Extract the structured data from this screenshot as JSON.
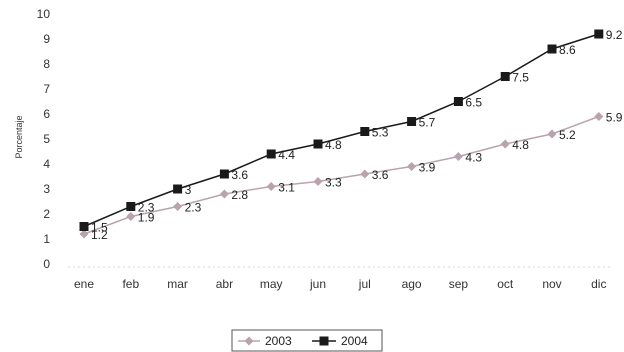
{
  "chart_data": {
    "type": "line",
    "ylabel": "Porcentaje",
    "ylim": [
      0,
      10
    ],
    "yticks": [
      "0",
      "1",
      "2",
      "3",
      "4",
      "5",
      "6",
      "7",
      "8",
      "9",
      "10"
    ],
    "categories": [
      "ene",
      "feb",
      "mar",
      "abr",
      "may",
      "jun",
      "jul",
      "ago",
      "sep",
      "oct",
      "nov",
      "dic"
    ],
    "grid": false,
    "legend_position": "bottom",
    "series": [
      {
        "name": "2003",
        "values": [
          1.2,
          1.9,
          2.3,
          2.8,
          3.1,
          3.3,
          3.6,
          3.9,
          4.3,
          4.8,
          5.2,
          5.9
        ],
        "labels": [
          "1.2",
          "1.9",
          "2.3",
          "2.8",
          "3.1",
          "3.3",
          "3.6",
          "3.9",
          "4.3",
          "4.8",
          "5.2",
          "5.9"
        ],
        "color": "#b9a3ae",
        "marker": "diamond"
      },
      {
        "name": "2004",
        "values": [
          1.5,
          2.3,
          3.0,
          3.6,
          4.4,
          4.8,
          5.3,
          5.7,
          6.5,
          7.5,
          8.6,
          9.2
        ],
        "labels": [
          "1.5",
          "2.3",
          "3",
          "3.6",
          "4.4",
          "4.8",
          "5.3",
          "5.7",
          "6.5",
          "7.5",
          "8.6",
          "9.2"
        ],
        "color": "#1a1a1a",
        "marker": "square"
      }
    ]
  }
}
